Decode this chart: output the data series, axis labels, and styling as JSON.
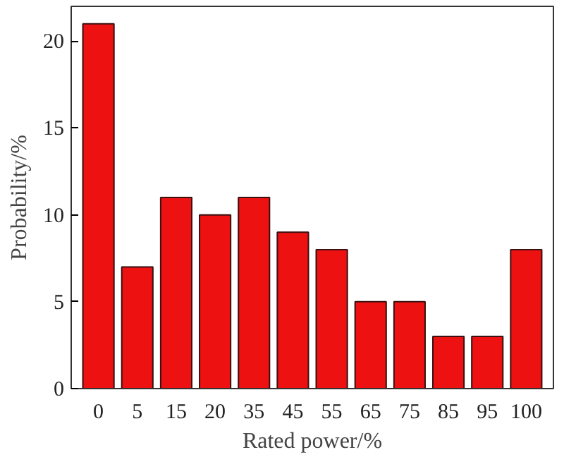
{
  "chart_data": {
    "type": "bar",
    "xlabel": "Rated power/%",
    "ylabel": "Probability/%",
    "categories": [
      "0",
      "5",
      "15",
      "20",
      "35",
      "45",
      "55",
      "65",
      "75",
      "85",
      "95",
      "100"
    ],
    "values": [
      21,
      7,
      11,
      10,
      11,
      9,
      8,
      5,
      5,
      3,
      3,
      8
    ],
    "color": "#ee1111",
    "ylim": [
      0,
      22
    ],
    "yticks": [
      0,
      5,
      10,
      15,
      20
    ],
    "grid": false
  }
}
